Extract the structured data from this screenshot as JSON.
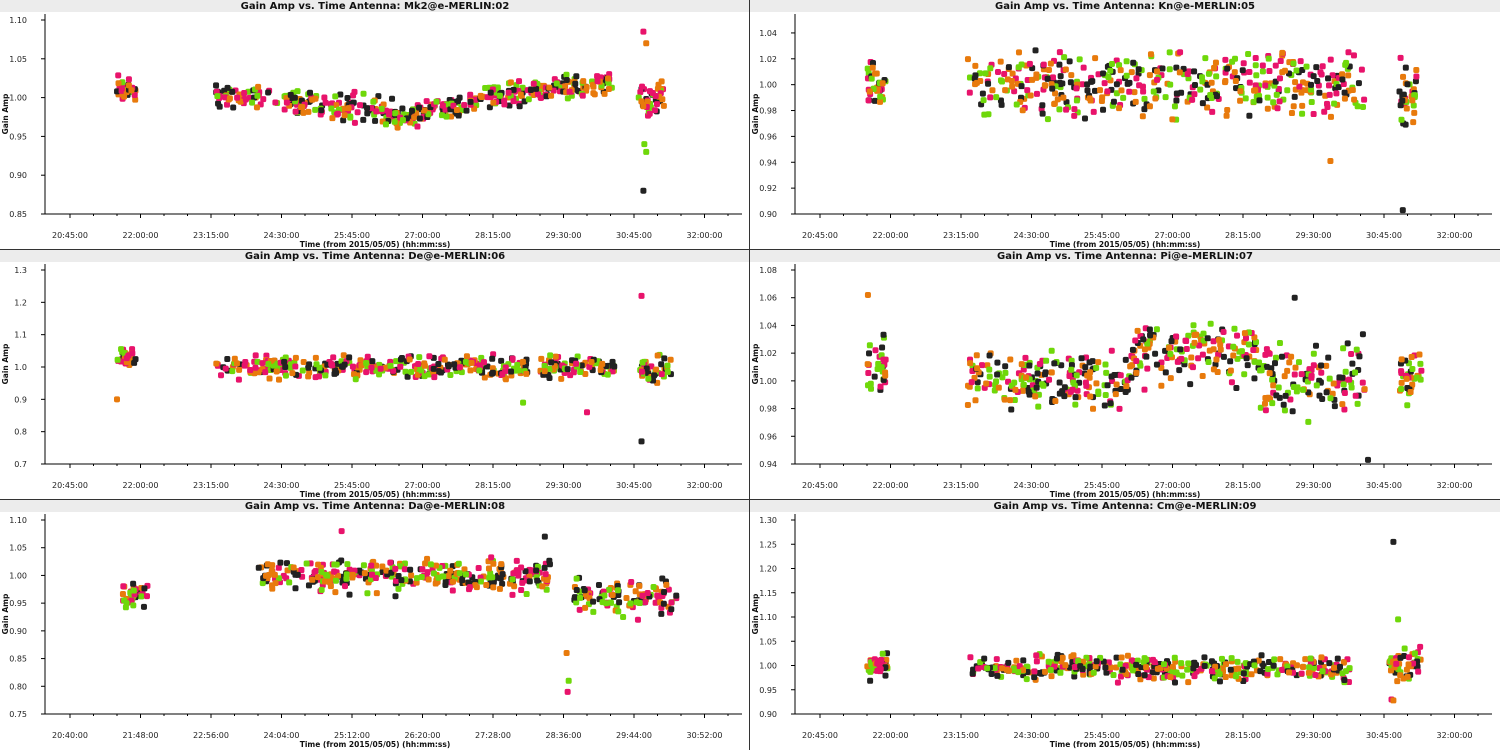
{
  "chart_data": [
    {
      "type": "scatter",
      "title": "Gain Amp vs. Time Antenna: Mk2@e-MERLIN:02",
      "xlabel": "Time (from 2015/05/05) (hh:mm:ss)",
      "ylabel": "Gain Amp",
      "xticks": [
        "20:45:00",
        "22:00:00",
        "23:15:00",
        "24:30:00",
        "25:45:00",
        "27:00:00",
        "28:15:00",
        "29:30:00",
        "30:45:00",
        "32:00:00"
      ],
      "yticks": [
        "0.85",
        "0.90",
        "0.95",
        "1.00",
        "1.05",
        "1.10"
      ],
      "ylim": [
        0.85,
        1.1
      ],
      "clusters": [
        {
          "t0": "21:35:00",
          "t1": "21:55:00",
          "n": 32,
          "base": 1.01,
          "spread": 0.035
        },
        {
          "t0": "23:20:00",
          "t1": "26:30:00",
          "n": 170,
          "base": 1.005,
          "end": 0.98,
          "spread": 0.04
        },
        {
          "t0": "26:30:00",
          "t1": "28:00:00",
          "n": 110,
          "base": 0.975,
          "end": 0.995,
          "spread": 0.035
        },
        {
          "t0": "28:00:00",
          "t1": "30:25:00",
          "n": 150,
          "base": 1.0,
          "end": 1.02,
          "spread": 0.04
        },
        {
          "t0": "30:50:00",
          "t1": "31:20:00",
          "n": 40,
          "base": 1.0,
          "spread": 0.05
        }
      ],
      "extra_points": [
        {
          "t": "30:55:00",
          "y": 0.88,
          "series": "black"
        },
        {
          "t": "30:55:00",
          "y": 1.085,
          "series": "magenta"
        },
        {
          "t": "30:58:00",
          "y": 0.93,
          "series": "green"
        },
        {
          "t": "30:56:00",
          "y": 0.94,
          "series": "green"
        },
        {
          "t": "30:58:00",
          "y": 1.07,
          "series": "orange"
        }
      ]
    },
    {
      "type": "scatter",
      "title": "Gain Amp vs. Time Antenna: Kn@e-MERLIN:05",
      "xlabel": "Time (from 2015/05/05) (hh:mm:ss)",
      "ylabel": "Gain Amp",
      "xticks": [
        "20:45:00",
        "22:00:00",
        "23:15:00",
        "24:30:00",
        "25:45:00",
        "27:00:00",
        "28:15:00",
        "29:30:00",
        "30:45:00",
        "32:00:00"
      ],
      "yticks": [
        "0.90",
        "0.92",
        "0.94",
        "0.96",
        "0.98",
        "1.00",
        "1.02",
        "1.04"
      ],
      "ylim": [
        0.9,
        1.05
      ],
      "clusters": [
        {
          "t0": "21:35:00",
          "t1": "21:55:00",
          "n": 35,
          "base": 1.0,
          "spread": 0.04
        },
        {
          "t0": "23:20:00",
          "t1": "30:25:00",
          "n": 420,
          "base": 1.0,
          "spread": 0.06
        },
        {
          "t0": "31:00:00",
          "t1": "31:20:00",
          "n": 35,
          "base": 0.995,
          "spread": 0.06
        }
      ],
      "extra_points": [
        {
          "t": "31:05:00",
          "y": 0.903,
          "series": "black"
        },
        {
          "t": "29:48:00",
          "y": 0.941,
          "series": "orange"
        }
      ]
    },
    {
      "type": "scatter",
      "title": "Gain Amp vs. Time Antenna: De@e-MERLIN:06",
      "xlabel": "Time (from 2015/05/05) (hh:mm:ss)",
      "ylabel": "Gain Amp",
      "xticks": [
        "20:45:00",
        "22:00:00",
        "23:15:00",
        "24:30:00",
        "25:45:00",
        "27:00:00",
        "28:15:00",
        "29:30:00",
        "30:45:00",
        "32:00:00"
      ],
      "yticks": [
        "0.7",
        "0.8",
        "0.9",
        "1.0",
        "1.1",
        "1.2",
        "1.3"
      ],
      "ylim": [
        0.7,
        1.3
      ],
      "clusters": [
        {
          "t0": "21:35:00",
          "t1": "21:55:00",
          "n": 32,
          "base": 1.03,
          "spread": 0.07
        },
        {
          "t0": "23:20:00",
          "t1": "28:55:00",
          "n": 300,
          "base": 1.0,
          "spread": 0.08
        },
        {
          "t0": "29:05:00",
          "t1": "30:25:00",
          "n": 90,
          "base": 1.0,
          "spread": 0.07
        },
        {
          "t0": "30:50:00",
          "t1": "31:25:00",
          "n": 45,
          "base": 0.99,
          "spread": 0.1
        }
      ],
      "extra_points": [
        {
          "t": "21:35:00",
          "y": 0.9,
          "series": "orange"
        },
        {
          "t": "30:53:00",
          "y": 1.22,
          "series": "magenta"
        },
        {
          "t": "30:53:00",
          "y": 0.77,
          "series": "black"
        },
        {
          "t": "28:47:00",
          "y": 0.89,
          "series": "green"
        },
        {
          "t": "29:55:00",
          "y": 0.86,
          "series": "magenta"
        }
      ]
    },
    {
      "type": "scatter",
      "title": "Gain Amp vs. Time Antenna: Pi@e-MERLIN:07",
      "xlabel": "Time (from 2015/05/05) (hh:mm:ss)",
      "ylabel": "Gain Amp",
      "xticks": [
        "20:45:00",
        "22:00:00",
        "23:15:00",
        "24:30:00",
        "25:45:00",
        "27:00:00",
        "28:15:00",
        "29:30:00",
        "30:45:00",
        "32:00:00"
      ],
      "yticks": [
        "0.94",
        "0.96",
        "0.98",
        "1.00",
        "1.02",
        "1.04",
        "1.06",
        "1.08"
      ],
      "ylim": [
        0.94,
        1.08
      ],
      "clusters": [
        {
          "t0": "21:35:00",
          "t1": "21:55:00",
          "n": 30,
          "base": 1.01,
          "spread": 0.05
        },
        {
          "t0": "23:20:00",
          "t1": "26:15:00",
          "n": 190,
          "base": 1.0,
          "spread": 0.05
        },
        {
          "t0": "26:15:00",
          "t1": "28:30:00",
          "n": 150,
          "base": 1.02,
          "spread": 0.05
        },
        {
          "t0": "28:30:00",
          "t1": "30:25:00",
          "n": 120,
          "base": 1.0,
          "spread": 0.06
        },
        {
          "t0": "31:00:00",
          "t1": "31:25:00",
          "n": 35,
          "base": 1.005,
          "spread": 0.04
        }
      ],
      "extra_points": [
        {
          "t": "30:28:00",
          "y": 0.943,
          "series": "black"
        },
        {
          "t": "21:36:00",
          "y": 1.062,
          "series": "orange"
        },
        {
          "t": "29:10:00",
          "y": 1.06,
          "series": "black"
        }
      ]
    },
    {
      "type": "scatter",
      "title": "Gain Amp vs. Time Antenna: Da@e-MERLIN:08",
      "xlabel": "Time (from 2015/05/05) (hh:mm:ss)",
      "ylabel": "Gain Amp",
      "xticks": [
        "20:40:00",
        "21:48:00",
        "22:56:00",
        "24:04:00",
        "25:12:00",
        "26:20:00",
        "27:28:00",
        "28:36:00",
        "29:44:00",
        "30:52:00"
      ],
      "yticks": [
        "0.75",
        "0.80",
        "0.85",
        "0.90",
        "0.95",
        "1.00",
        "1.05",
        "1.10"
      ],
      "ylim": [
        0.75,
        1.1
      ],
      "clusters": [
        {
          "t0": "21:30:00",
          "t1": "21:55:00",
          "n": 35,
          "base": 0.96,
          "spread": 0.06
        },
        {
          "t0": "23:40:00",
          "t1": "28:25:00",
          "n": 300,
          "base": 1.0,
          "spread": 0.07
        },
        {
          "t0": "28:45:00",
          "t1": "30:25:00",
          "n": 110,
          "base": 0.96,
          "spread": 0.08
        }
      ],
      "extra_points": [
        {
          "t": "28:40:00",
          "y": 0.79,
          "series": "magenta"
        },
        {
          "t": "28:41:00",
          "y": 0.81,
          "series": "green"
        },
        {
          "t": "28:39:00",
          "y": 0.86,
          "series": "orange"
        },
        {
          "t": "25:02:00",
          "y": 1.08,
          "series": "magenta"
        },
        {
          "t": "28:18:00",
          "y": 1.07,
          "series": "black"
        }
      ]
    },
    {
      "type": "scatter",
      "title": "Gain Amp vs. Time Antenna: Cm@e-MERLIN:09",
      "xlabel": "Time (from 2015/05/05) (hh:mm:ss)",
      "ylabel": "Gain Amp",
      "xticks": [
        "20:45:00",
        "22:00:00",
        "23:15:00",
        "24:30:00",
        "25:45:00",
        "27:00:00",
        "28:15:00",
        "29:30:00",
        "30:45:00",
        "32:00:00"
      ],
      "yticks": [
        "0.90",
        "0.95",
        "1.00",
        "1.05",
        "1.10",
        "1.15",
        "1.20",
        "1.25",
        "1.30"
      ],
      "ylim": [
        0.9,
        1.3
      ],
      "clusters": [
        {
          "t0": "21:35:00",
          "t1": "21:58:00",
          "n": 35,
          "base": 1.0,
          "spread": 0.06
        },
        {
          "t0": "23:25:00",
          "t1": "30:10:00",
          "n": 400,
          "base": 0.995,
          "spread": 0.06
        },
        {
          "t0": "30:50:00",
          "t1": "31:25:00",
          "n": 45,
          "base": 1.0,
          "spread": 0.08
        }
      ],
      "extra_points": [
        {
          "t": "30:55:00",
          "y": 1.255,
          "series": "black"
        },
        {
          "t": "30:53:00",
          "y": 0.93,
          "series": "magenta"
        },
        {
          "t": "30:55:00",
          "y": 0.928,
          "series": "orange"
        },
        {
          "t": "31:00:00",
          "y": 1.095,
          "series": "green"
        }
      ]
    }
  ],
  "series_colors": {
    "black": "#222222",
    "magenta": "#e8136b",
    "orange": "#e87a0c",
    "green": "#6fd80a"
  },
  "title_bar_color": "#ececec"
}
